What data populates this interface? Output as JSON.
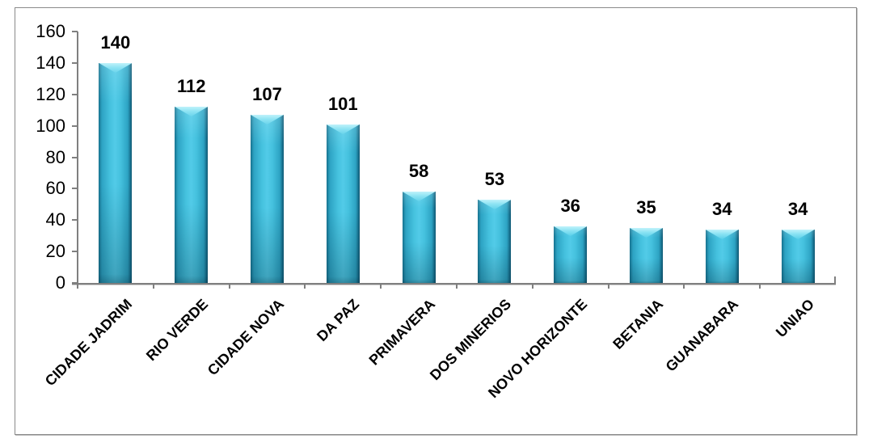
{
  "chart_data": {
    "type": "bar",
    "title": "",
    "xlabel": "",
    "ylabel": "",
    "categories": [
      "CIDADE JADRIM",
      "RIO VERDE",
      "CIDADE NOVA",
      "DA PAZ",
      "PRIMAVERA",
      "DOS MINERIOS",
      "NOVO HORIZONTE",
      "BETANIA",
      "GUANABARA",
      "UNIAO"
    ],
    "values": [
      140,
      112,
      107,
      101,
      58,
      53,
      36,
      35,
      34,
      34
    ],
    "data_labels": [
      140,
      112,
      107,
      101,
      58,
      53,
      36,
      35,
      34,
      34
    ],
    "ylim": [
      0,
      160
    ],
    "yticks": [
      0,
      20,
      40,
      60,
      80,
      100,
      120,
      140,
      160
    ],
    "grid": false,
    "legend": false,
    "x_label_rotation_deg": 45,
    "bar_color": "#45C1DE",
    "bar_highlight_color": "#7FE0F2",
    "bar_edge_color": "#0D5672",
    "axis_color": "#7F7F7F",
    "label_color": "#000000",
    "frame_border_color": "#8A8A8A",
    "background_color": "#FFFFFF"
  }
}
